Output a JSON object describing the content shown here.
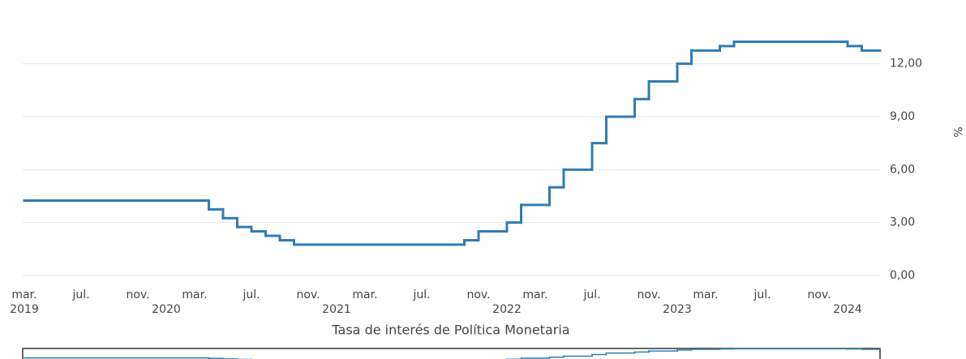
{
  "chart_data": {
    "type": "step",
    "x_label": "Tasa de interés de Política Monetaria",
    "y_label": "%",
    "series": [
      {
        "name": "Tasa de interés de Política Monetaria",
        "color": "#2f7db2",
        "x": [
          "2019-03",
          "2020-04",
          "2020-05",
          "2020-06",
          "2020-07",
          "2020-08",
          "2020-09",
          "2020-10",
          "2021-10",
          "2021-11",
          "2022-01",
          "2022-02",
          "2022-04",
          "2022-05",
          "2022-07",
          "2022-08",
          "2022-10",
          "2022-11",
          "2023-01",
          "2023-02",
          "2023-04",
          "2023-05",
          "2024-01",
          "2024-02"
        ],
        "values": [
          4.25,
          3.75,
          3.25,
          2.75,
          2.5,
          2.25,
          2.0,
          1.75,
          2.0,
          2.5,
          3.0,
          4.0,
          5.0,
          6.0,
          7.5,
          9.0,
          10.0,
          11.0,
          12.0,
          12.75,
          13.0,
          13.25,
          13.0,
          12.75
        ]
      }
    ],
    "xlim": [
      "2019-03",
      "2024-03"
    ],
    "ylim": [
      0,
      13.5
    ],
    "yticks": [
      {
        "value": 0,
        "label": "0,00"
      },
      {
        "value": 3,
        "label": "3,00"
      },
      {
        "value": 6,
        "label": "6,00"
      },
      {
        "value": 9,
        "label": "9,00"
      },
      {
        "value": 12,
        "label": "12,00"
      }
    ],
    "xticks": [
      {
        "value": "2019-03",
        "label": "mar."
      },
      {
        "value": "2019-07",
        "label": "jul."
      },
      {
        "value": "2019-11",
        "label": "nov."
      },
      {
        "value": "2020-03",
        "label": "mar."
      },
      {
        "value": "2020-07",
        "label": "jul."
      },
      {
        "value": "2020-11",
        "label": "nov."
      },
      {
        "value": "2021-03",
        "label": "mar."
      },
      {
        "value": "2021-07",
        "label": "jul."
      },
      {
        "value": "2021-11",
        "label": "nov."
      },
      {
        "value": "2022-03",
        "label": "mar."
      },
      {
        "value": "2022-07",
        "label": "jul."
      },
      {
        "value": "2022-11",
        "label": "nov."
      },
      {
        "value": "2023-03",
        "label": "mar."
      },
      {
        "value": "2023-07",
        "label": "jul."
      },
      {
        "value": "2023-11",
        "label": "nov."
      }
    ],
    "year_labels": [
      {
        "value": "2019-03",
        "label": "2019"
      },
      {
        "value": "2020-01",
        "label": "2020"
      },
      {
        "value": "2021-01",
        "label": "2021"
      },
      {
        "value": "2022-01",
        "label": "2022"
      },
      {
        "value": "2023-01",
        "label": "2023"
      },
      {
        "value": "2024-01",
        "label": "2024"
      }
    ],
    "grid": true
  }
}
